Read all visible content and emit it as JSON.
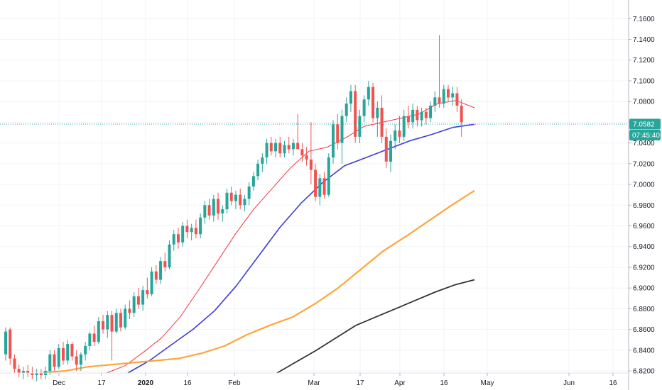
{
  "chart_data": {
    "type": "candlestick",
    "ylim": [
      6.818,
      7.178
    ],
    "y_ticks": [
      "7.1600",
      "7.1400",
      "7.1200",
      "7.1000",
      "7.0800",
      "7.0600",
      "7.0400",
      "7.0200",
      "7.0000",
      "6.9800",
      "6.9600",
      "6.9400",
      "6.9200",
      "6.9000",
      "6.8800",
      "6.8600",
      "6.8400",
      "6.8200"
    ],
    "x_ticks": [
      {
        "label": "Dec",
        "bold": false
      },
      {
        "label": "17",
        "bold": false
      },
      {
        "label": "2020",
        "bold": true
      },
      {
        "label": "16",
        "bold": false
      },
      {
        "label": "Feb",
        "bold": false
      },
      {
        "label": "Mar",
        "bold": false
      },
      {
        "label": "17",
        "bold": false
      },
      {
        "label": "Apr",
        "bold": false
      },
      {
        "label": "16",
        "bold": false
      },
      {
        "label": "May",
        "bold": false
      },
      {
        "label": "Jun",
        "bold": false
      },
      {
        "label": "16",
        "bold": false
      }
    ],
    "last_price": "7.0582",
    "countdown": "07:45:40",
    "grid": true,
    "colors": {
      "up": "#26a69a",
      "down": "#ef5350",
      "ma20": "#f23645",
      "ma50": "#3c3cd8",
      "ma100": "#ffa53a",
      "ma200": "#333333",
      "badge": "#26a69a"
    },
    "moving_averages": [
      {
        "key": "ma20",
        "values": [
          6.818,
          6.825,
          6.838,
          6.852,
          6.872,
          6.898,
          6.925,
          6.952,
          6.976,
          6.996,
          7.016,
          7.032,
          7.036,
          7.045,
          7.056,
          7.06,
          7.064,
          7.068,
          7.078,
          7.081,
          7.074
        ]
      },
      {
        "key": "ma50",
        "values": [
          6.818,
          6.83,
          6.845,
          6.86,
          6.878,
          6.902,
          6.93,
          6.958,
          6.982,
          7.002,
          7.018,
          7.026,
          7.034,
          7.042,
          7.048,
          7.055,
          7.058
        ]
      },
      {
        "key": "ma100",
        "values": [
          6.8185,
          6.82,
          6.824,
          6.826,
          6.828,
          6.83,
          6.832,
          6.837,
          6.844,
          6.855,
          6.864,
          6.872,
          6.885,
          6.9,
          6.918,
          6.936,
          6.95,
          6.965,
          6.98,
          6.994
        ]
      },
      {
        "key": "ma200",
        "values": [
          6.818,
          6.829,
          6.84,
          6.852,
          6.864,
          6.872,
          6.88,
          6.888,
          6.896,
          6.903,
          6.908
        ]
      }
    ],
    "candles": [
      [
        6.836,
        6.862,
        6.83,
        6.858
      ],
      [
        6.86,
        6.862,
        6.826,
        6.832
      ],
      [
        6.832,
        6.836,
        6.818,
        6.822
      ],
      [
        6.822,
        6.826,
        6.814,
        6.818
      ],
      [
        6.818,
        6.824,
        6.812,
        6.82
      ],
      [
        6.82,
        6.826,
        6.814,
        6.818
      ],
      [
        6.818,
        6.824,
        6.812,
        6.816
      ],
      [
        6.816,
        6.822,
        6.81,
        6.818
      ],
      [
        6.818,
        6.822,
        6.812,
        6.816
      ],
      [
        6.816,
        6.824,
        6.812,
        6.82
      ],
      [
        6.82,
        6.84,
        6.816,
        6.836
      ],
      [
        6.836,
        6.84,
        6.82,
        6.824
      ],
      [
        6.824,
        6.846,
        6.822,
        6.842
      ],
      [
        6.842,
        6.848,
        6.826,
        6.83
      ],
      [
        6.83,
        6.85,
        6.826,
        6.846
      ],
      [
        6.846,
        6.848,
        6.83,
        6.834
      ],
      [
        6.834,
        6.84,
        6.82,
        6.826
      ],
      [
        6.826,
        6.838,
        6.82,
        6.836
      ],
      [
        6.836,
        6.848,
        6.83,
        6.844
      ],
      [
        6.844,
        6.858,
        6.84,
        6.856
      ],
      [
        6.856,
        6.864,
        6.844,
        6.848
      ],
      [
        6.848,
        6.872,
        6.846,
        6.868
      ],
      [
        6.868,
        6.874,
        6.856,
        6.86
      ],
      [
        6.86,
        6.878,
        6.852,
        6.874
      ],
      [
        6.874,
        6.878,
        6.83,
        6.858
      ],
      [
        6.858,
        6.88,
        6.856,
        6.876
      ],
      [
        6.876,
        6.88,
        6.858,
        6.862
      ],
      [
        6.862,
        6.884,
        6.86,
        6.88
      ],
      [
        6.88,
        6.888,
        6.87,
        6.876
      ],
      [
        6.876,
        6.896,
        6.872,
        6.892
      ],
      [
        6.892,
        6.9,
        6.88,
        6.884
      ],
      [
        6.884,
        6.902,
        6.878,
        6.898
      ],
      [
        6.898,
        6.91,
        6.89,
        6.894
      ],
      [
        6.894,
        6.92,
        6.892,
        6.916
      ],
      [
        6.916,
        6.922,
        6.904,
        6.908
      ],
      [
        6.908,
        6.93,
        6.904,
        6.926
      ],
      [
        6.926,
        6.934,
        6.916,
        6.92
      ],
      [
        6.92,
        6.946,
        6.918,
        6.942
      ],
      [
        6.942,
        6.956,
        6.936,
        6.952
      ],
      [
        6.952,
        6.958,
        6.938,
        6.944
      ],
      [
        6.944,
        6.964,
        6.94,
        6.96
      ],
      [
        6.96,
        6.966,
        6.948,
        6.954
      ],
      [
        6.954,
        6.962,
        6.946,
        6.958
      ],
      [
        6.958,
        6.966,
        6.948,
        6.952
      ],
      [
        6.952,
        6.972,
        6.948,
        6.968
      ],
      [
        6.968,
        6.984,
        6.962,
        6.98
      ],
      [
        6.98,
        6.986,
        6.966,
        6.97
      ],
      [
        6.97,
        6.99,
        6.964,
        6.986
      ],
      [
        6.986,
        6.992,
        6.966,
        6.972
      ],
      [
        6.972,
        6.98,
        6.964,
        6.976
      ],
      [
        6.976,
        6.996,
        6.972,
        6.992
      ],
      [
        6.992,
        6.998,
        6.98,
        6.984
      ],
      [
        6.984,
        6.994,
        6.976,
        6.99
      ],
      [
        6.99,
        6.996,
        6.976,
        6.98
      ],
      [
        6.98,
        6.99,
        6.974,
        6.986
      ],
      [
        6.986,
        7.002,
        6.98,
        6.998
      ],
      [
        6.998,
        7.012,
        6.994,
        7.008
      ],
      [
        7.008,
        7.024,
        7.004,
        7.02
      ],
      [
        7.02,
        7.03,
        7.012,
        7.026
      ],
      [
        7.026,
        7.044,
        7.02,
        7.04
      ],
      [
        7.04,
        7.046,
        7.028,
        7.032
      ],
      [
        7.032,
        7.044,
        7.026,
        7.04
      ],
      [
        7.04,
        7.046,
        7.026,
        7.03
      ],
      [
        7.03,
        7.042,
        7.026,
        7.038
      ],
      [
        7.038,
        7.046,
        7.03,
        7.034
      ],
      [
        7.034,
        7.044,
        7.028,
        7.04
      ],
      [
        7.04,
        7.068,
        7.034,
        7.034
      ],
      [
        7.034,
        7.04,
        7.022,
        7.028
      ],
      [
        7.028,
        7.036,
        7.018,
        7.024
      ],
      [
        7.024,
        7.06,
        7.0,
        7.014
      ],
      [
        7.014,
        7.02,
        6.984,
        6.988
      ],
      [
        6.988,
        7.01,
        6.98,
        7.006
      ],
      [
        7.006,
        7.012,
        6.986,
        6.99
      ],
      [
        6.99,
        7.03,
        6.988,
        7.026
      ],
      [
        7.026,
        7.062,
        7.02,
        7.058
      ],
      [
        7.058,
        7.068,
        7.034,
        7.04
      ],
      [
        7.04,
        7.072,
        7.02,
        7.066
      ],
      [
        7.066,
        7.084,
        7.06,
        7.078
      ],
      [
        7.078,
        7.096,
        7.07,
        7.09
      ],
      [
        7.09,
        7.096,
        7.04,
        7.046
      ],
      [
        7.046,
        7.072,
        7.04,
        7.066
      ],
      [
        7.066,
        7.086,
        7.06,
        7.082
      ],
      [
        7.082,
        7.1,
        7.076,
        7.094
      ],
      [
        7.094,
        7.098,
        7.06,
        7.064
      ],
      [
        7.064,
        7.08,
        7.046,
        7.074
      ],
      [
        7.074,
        7.086,
        7.04,
        7.046
      ],
      [
        7.046,
        7.054,
        7.016,
        7.022
      ],
      [
        7.022,
        7.048,
        7.012,
        7.042
      ],
      [
        7.042,
        7.058,
        7.034,
        7.052
      ],
      [
        7.052,
        7.066,
        7.04,
        7.046
      ],
      [
        7.046,
        7.072,
        7.042,
        7.066
      ],
      [
        7.066,
        7.076,
        7.054,
        7.06
      ],
      [
        7.06,
        7.078,
        7.054,
        7.072
      ],
      [
        7.072,
        7.076,
        7.056,
        7.062
      ],
      [
        7.062,
        7.074,
        7.056,
        7.07
      ],
      [
        7.07,
        7.074,
        7.058,
        7.064
      ],
      [
        7.064,
        7.08,
        7.06,
        7.076
      ],
      [
        7.076,
        7.09,
        7.07,
        7.084
      ],
      [
        7.084,
        7.144,
        7.074,
        7.078
      ],
      [
        7.078,
        7.096,
        7.074,
        7.092
      ],
      [
        7.092,
        7.096,
        7.08,
        7.084
      ],
      [
        7.084,
        7.094,
        7.076,
        7.088
      ],
      [
        7.088,
        7.094,
        7.07,
        7.076
      ],
      [
        7.076,
        7.082,
        7.046,
        7.06
      ]
    ]
  }
}
